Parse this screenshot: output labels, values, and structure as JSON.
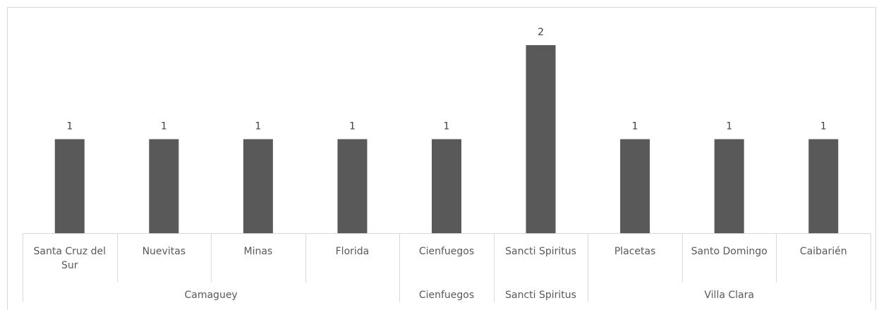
{
  "chart_data": {
    "type": "bar",
    "title": "",
    "xlabel": "",
    "ylabel": "",
    "ylim": [
      0,
      2.3
    ],
    "grid": false,
    "categories": [
      "Santa Cruz del Sur",
      "Nuevitas",
      "Minas",
      "Florida",
      "Cienfuegos",
      "Sancti Spiritus",
      "Placetas",
      "Santo Domingo",
      "Caibarién"
    ],
    "category_lines": [
      [
        "Santa Cruz del",
        "Sur"
      ],
      [
        "Nuevitas"
      ],
      [
        "Minas"
      ],
      [
        "Florida"
      ],
      [
        "Cienfuegos"
      ],
      [
        "Sancti Spiritus"
      ],
      [
        "Placetas"
      ],
      [
        "Santo Domingo"
      ],
      [
        "Caibarién"
      ]
    ],
    "values": [
      1,
      1,
      1,
      1,
      1,
      2,
      1,
      1,
      1
    ],
    "data_labels": [
      "1",
      "1",
      "1",
      "1",
      "1",
      "2",
      "1",
      "1",
      "1"
    ],
    "groups": [
      {
        "name": "Camaguey",
        "count": 4
      },
      {
        "name": "Cienfuegos",
        "count": 1
      },
      {
        "name": "Sancti Spiritus",
        "count": 1
      },
      {
        "name": "Villa Clara",
        "count": 3
      }
    ],
    "bar_color": "#595959",
    "axis_color": "#d9d9d9"
  }
}
